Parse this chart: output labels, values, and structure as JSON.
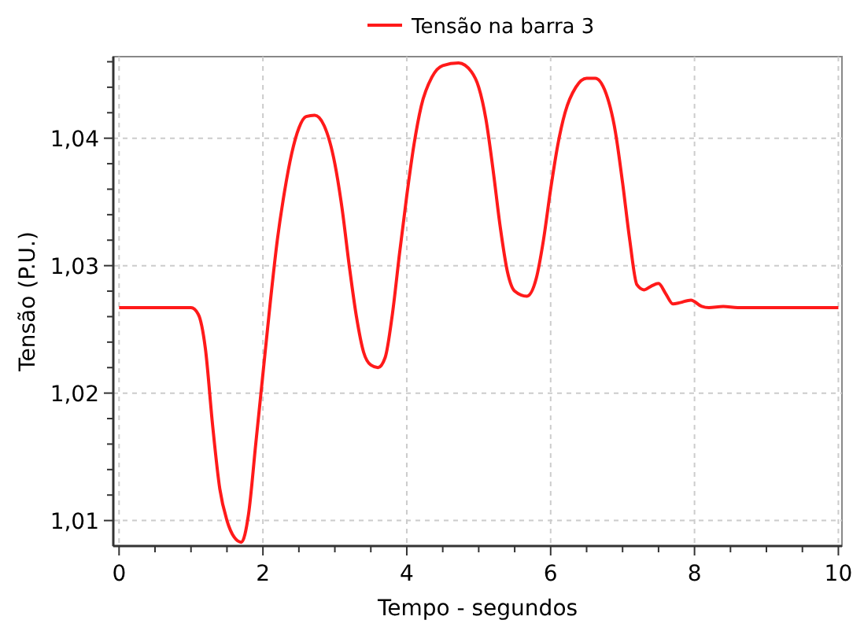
{
  "chart_data": {
    "type": "line",
    "xlabel": "Tempo - segundos",
    "ylabel": "Tensão (P.U.)",
    "xlim": [
      -0.08,
      10.05
    ],
    "ylim": [
      1.008,
      1.0464
    ],
    "xticks": [
      0,
      {
        "value": 0.5,
        "label": null
      },
      {
        "value": 1,
        "label": null
      },
      {
        "value": 1.5,
        "label": null
      },
      2,
      {
        "value": 2.5,
        "label": null
      },
      {
        "value": 3,
        "label": null
      },
      {
        "value": 3.5,
        "label": null
      },
      4,
      {
        "value": 4.5,
        "label": null
      },
      {
        "value": 5,
        "label": null
      },
      {
        "value": 5.5,
        "label": null
      },
      6,
      {
        "value": 6.5,
        "label": null
      },
      {
        "value": 7,
        "label": null
      },
      {
        "value": 7.5,
        "label": null
      },
      8,
      {
        "value": 8.5,
        "label": null
      },
      {
        "value": 9,
        "label": null
      },
      {
        "value": 9.5,
        "label": null
      },
      10
    ],
    "yticks": [
      {
        "value": 1.01,
        "label": "1,01"
      },
      {
        "value": 1.012,
        "label": null
      },
      {
        "value": 1.014,
        "label": null
      },
      {
        "value": 1.016,
        "label": null
      },
      {
        "value": 1.018,
        "label": null
      },
      {
        "value": 1.02,
        "label": "1,02"
      },
      {
        "value": 1.022,
        "label": null
      },
      {
        "value": 1.024,
        "label": null
      },
      {
        "value": 1.026,
        "label": null
      },
      {
        "value": 1.028,
        "label": null
      },
      {
        "value": 1.03,
        "label": "1,03"
      },
      {
        "value": 1.032,
        "label": null
      },
      {
        "value": 1.034,
        "label": null
      },
      {
        "value": 1.036,
        "label": null
      },
      {
        "value": 1.038,
        "label": null
      },
      {
        "value": 1.04,
        "label": "1,04"
      },
      {
        "value": 1.042,
        "label": null
      },
      {
        "value": 1.044,
        "label": null
      },
      {
        "value": 1.046,
        "label": null
      }
    ],
    "grid": true,
    "legend": "top",
    "marker": "none",
    "line_style": "solid",
    "series": [
      {
        "name": "Tensão na barra 3",
        "color": "#ff1a1a",
        "x": [
          0,
          1.0,
          1.1,
          1.2,
          1.3,
          1.4,
          1.5,
          1.6,
          1.7,
          1.8,
          1.9,
          2.0,
          2.1,
          2.2,
          2.3,
          2.4,
          2.5,
          2.6,
          2.72,
          2.85,
          3.0,
          3.1,
          3.2,
          3.3,
          3.4,
          3.5,
          3.6,
          3.7,
          3.8,
          3.9,
          4.0,
          4.1,
          4.2,
          4.35,
          4.5,
          4.72,
          4.9,
          5.0,
          5.1,
          5.2,
          5.3,
          5.4,
          5.5,
          5.67,
          5.8,
          5.9,
          6.0,
          6.1,
          6.2,
          6.35,
          6.5,
          6.62,
          6.75,
          6.9,
          7.0,
          7.1,
          7.2,
          7.3,
          7.4,
          7.5,
          7.6,
          7.7,
          7.8,
          7.95,
          8.1,
          8.2,
          8.4,
          8.6,
          10
        ],
        "values": [
          1.0267,
          1.0267,
          1.0262,
          1.0235,
          1.0175,
          1.0125,
          1.01,
          1.0087,
          1.0083,
          1.0105,
          1.016,
          1.0215,
          1.027,
          1.032,
          1.0358,
          1.0388,
          1.0408,
          1.0417,
          1.0418,
          1.041,
          1.038,
          1.0345,
          1.03,
          1.026,
          1.0232,
          1.0222,
          1.022,
          1.0228,
          1.0262,
          1.031,
          1.0355,
          1.0395,
          1.0425,
          1.0448,
          1.0457,
          1.0459,
          1.0452,
          1.044,
          1.0415,
          1.0375,
          1.033,
          1.0295,
          1.028,
          1.0276,
          1.029,
          1.032,
          1.036,
          1.0395,
          1.042,
          1.044,
          1.0447,
          1.0447,
          1.0438,
          1.0405,
          1.0365,
          1.032,
          1.0285,
          1.0281,
          1.0284,
          1.0286,
          1.0278,
          1.027,
          1.0271,
          1.0273,
          1.0268,
          1.0267,
          1.0268,
          1.0267,
          1.0267
        ]
      }
    ]
  }
}
